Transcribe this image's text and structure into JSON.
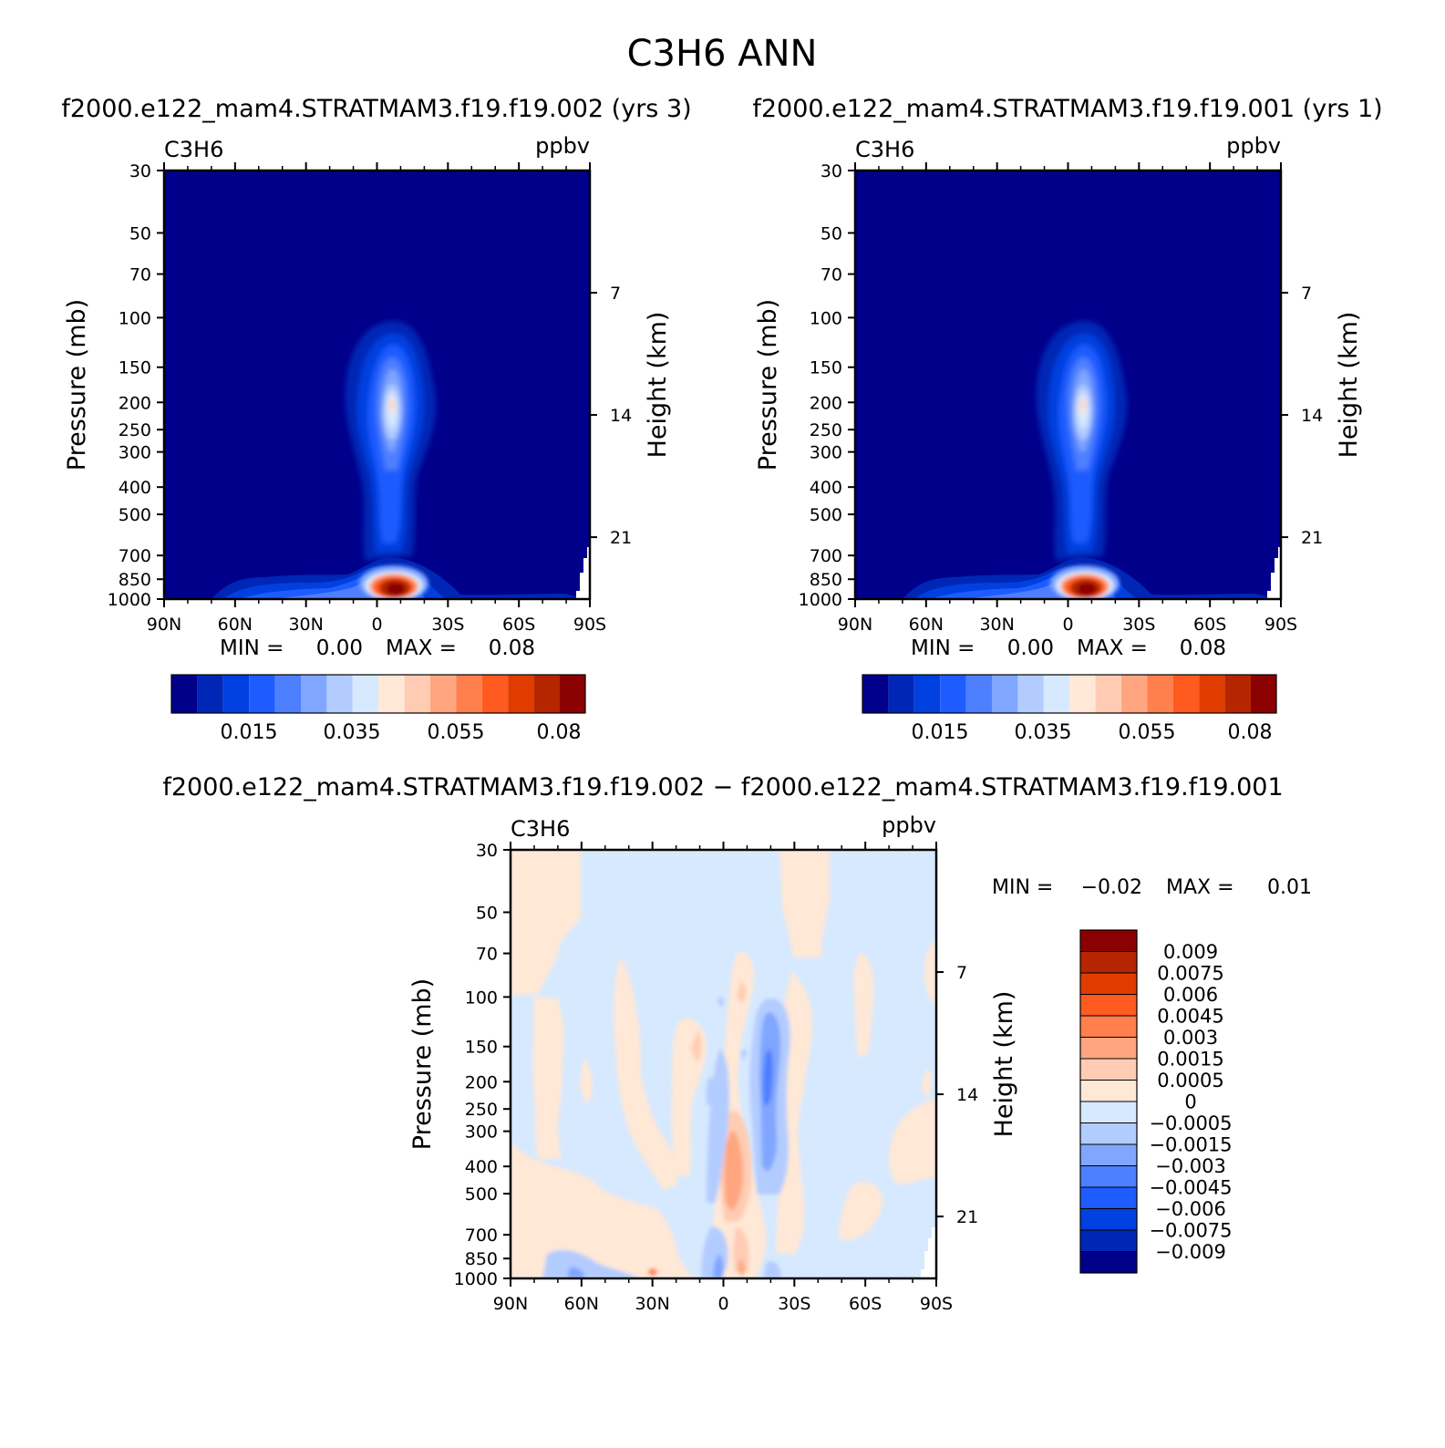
{
  "figure": {
    "main_title": "C3H6 ANN",
    "case1_title": "f2000.e122_mam4.STRATMAM3.f19.f19.002 (yrs 3)",
    "case2_title": "f2000.e122_mam4.STRATMAM3.f19.f19.001 (yrs 1)",
    "diff_title": "f2000.e122_mam4.STRATMAM3.f19.f19.002 − f2000.e122_mam4.STRATMAM3.f19.f19.001"
  },
  "colors": {
    "levels16": [
      "#00008b",
      "#0026b5",
      "#0040e0",
      "#1f5cff",
      "#4d7fff",
      "#80a6ff",
      "#b3ccff",
      "#d6e9ff",
      "#ffe8d6",
      "#ffccb3",
      "#ffa680",
      "#ff7f4d",
      "#ff5a1f",
      "#e03c00",
      "#b52600",
      "#8b0000"
    ],
    "diff": {
      "neg3": "#4d7fff",
      "neg2": "#80a6ff",
      "neg1": "#b3ccff",
      "zero": "#d6e9ff",
      "pos1": "#ffe8d6",
      "pos2": "#ffccb3",
      "pos3": "#ffa680",
      "pos4": "#ff7f4d"
    }
  },
  "chart_data": [
    {
      "type": "heatmap",
      "panel": "case1",
      "variable": "C3H6",
      "units": "ppbv",
      "xlabel": "",
      "ylabel": "Pressure (mb)",
      "ylabel_right": "Height (km)",
      "x_ticks": [
        "90N",
        "60N",
        "30N",
        "0",
        "30S",
        "60S",
        "90S"
      ],
      "x_values": [
        90,
        60,
        30,
        0,
        -30,
        -60,
        -90
      ],
      "y_ticks": [
        30,
        50,
        70,
        100,
        150,
        200,
        250,
        300,
        400,
        500,
        700,
        850,
        1000
      ],
      "y_right_ticks": [
        21,
        14,
        7
      ],
      "ylim": [
        1000,
        30
      ],
      "min_label": "MIN =",
      "min_value": "0.00",
      "max_label": "MAX =",
      "max_value": "0.08",
      "colorbar_labels": [
        "0.015",
        "0.035",
        "0.055",
        "0.08"
      ],
      "features": [
        {
          "name": "upper-trop plume",
          "lat": -6,
          "p_top": 100,
          "p_bottom": 600,
          "peak": 0.04
        },
        {
          "name": "surface maximum",
          "lat": -6,
          "p": 950,
          "peak": 0.08
        }
      ]
    },
    {
      "type": "heatmap",
      "panel": "case2",
      "variable": "C3H6",
      "units": "ppbv",
      "xlabel": "",
      "ylabel": "Pressure (mb)",
      "ylabel_right": "Height (km)",
      "x_ticks": [
        "90N",
        "60N",
        "30N",
        "0",
        "30S",
        "60S",
        "90S"
      ],
      "x_values": [
        90,
        60,
        30,
        0,
        -30,
        -60,
        -90
      ],
      "y_ticks": [
        30,
        50,
        70,
        100,
        150,
        200,
        250,
        300,
        400,
        500,
        700,
        850,
        1000
      ],
      "y_right_ticks": [
        21,
        14,
        7
      ],
      "ylim": [
        1000,
        30
      ],
      "min_label": "MIN =",
      "min_value": "0.00",
      "max_label": "MAX =",
      "max_value": "0.08",
      "colorbar_labels": [
        "0.015",
        "0.035",
        "0.055",
        "0.08"
      ],
      "features": [
        {
          "name": "upper-trop plume",
          "lat": -6,
          "p_top": 100,
          "p_bottom": 600,
          "peak": 0.04
        },
        {
          "name": "surface maximum",
          "lat": -6,
          "p": 950,
          "peak": 0.08
        }
      ]
    },
    {
      "type": "heatmap",
      "panel": "difference",
      "variable": "C3H6",
      "units": "ppbv",
      "xlabel": "",
      "ylabel": "Pressure (mb)",
      "ylabel_right": "Height (km)",
      "x_ticks": [
        "90N",
        "60N",
        "30N",
        "0",
        "30S",
        "60S",
        "90S"
      ],
      "x_values": [
        90,
        60,
        30,
        0,
        -30,
        -60,
        -90
      ],
      "y_ticks": [
        30,
        50,
        70,
        100,
        150,
        200,
        250,
        300,
        400,
        500,
        700,
        850,
        1000
      ],
      "y_right_ticks": [
        21,
        14,
        7
      ],
      "ylim": [
        1000,
        30
      ],
      "min_label": "MIN =",
      "min_value": "−0.02",
      "max_label": "MAX =",
      "max_value": "0.01",
      "colorbar_labels": [
        "0.009",
        "0.0075",
        "0.006",
        "0.0045",
        "0.003",
        "0.0015",
        "0.0005",
        "0",
        "−0.0005",
        "−0.0015",
        "−0.003",
        "−0.0045",
        "−0.006",
        "−0.0075",
        "−0.009"
      ],
      "features": [
        {
          "name": "negative column",
          "lat": -18,
          "p_top": 120,
          "p_bottom": 560,
          "value": -0.0045
        },
        {
          "name": "positive column",
          "lat": -3,
          "p_top": 250,
          "p_bottom": 900,
          "value": 0.003
        },
        {
          "name": "surface positive spot",
          "lat": 30,
          "p": 990,
          "value": 0.006
        }
      ]
    }
  ]
}
